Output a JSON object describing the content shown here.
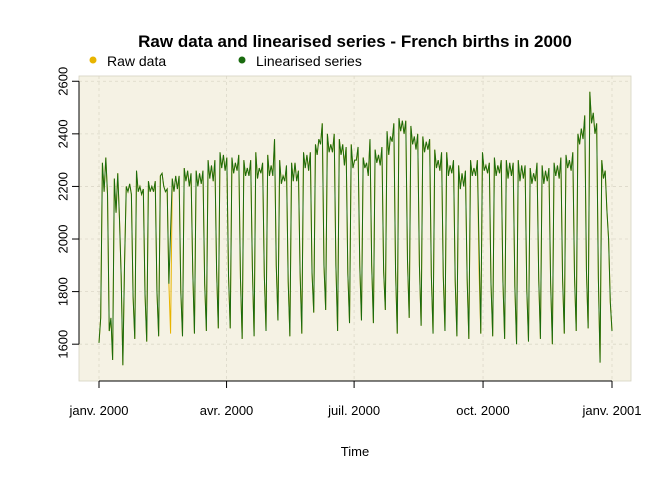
{
  "chart_data": {
    "type": "line",
    "title": "Raw data and linearised series - French births in 2000",
    "xlabel": "Time",
    "ylabel": "",
    "x_start": "2000-01-01",
    "x_end": "2001-01-01",
    "xlim": [
      "2000-01-01",
      "2001-01-01"
    ],
    "ylim": [
      1500,
      2600
    ],
    "x_ticks": [
      {
        "date": "2000-01-01",
        "label": "janv. 2000"
      },
      {
        "date": "2000-04-01",
        "label": "avr. 2000"
      },
      {
        "date": "2000-07-01",
        "label": "juil. 2000"
      },
      {
        "date": "2000-10-01",
        "label": "oct. 2000"
      },
      {
        "date": "2001-01-01",
        "label": "janv. 2001"
      }
    ],
    "y_ticks": [
      1600,
      1800,
      2000,
      2200,
      2400,
      2600
    ],
    "grid": true,
    "legend_position": "top-left",
    "background_color": "#f5f2e4",
    "series": [
      {
        "name": "Raw data",
        "color": "#e8b400",
        "values": [
          1605,
          1700,
          2290,
          2180,
          2310,
          2170,
          1650,
          1700,
          1540,
          2230,
          2100,
          2250,
          2080,
          1860,
          1520,
          1910,
          2200,
          2180,
          2210,
          2170,
          1780,
          1620,
          2260,
          2180,
          2200,
          2170,
          2190,
          1790,
          1610,
          2220,
          2180,
          2200,
          2180,
          2220,
          1800,
          1630,
          2240,
          2250,
          2200,
          2180,
          2190,
          1830,
          1640,
          2230,
          2180,
          2240,
          2190,
          2240,
          1800,
          1630,
          2270,
          2220,
          2260,
          2200,
          2250,
          1880,
          1640,
          2260,
          2200,
          2250,
          2210,
          2260,
          1830,
          1650,
          2300,
          2230,
          2280,
          2220,
          2300,
          1880,
          1660,
          2330,
          2270,
          2320,
          2260,
          2310,
          1860,
          1660,
          2310,
          2250,
          2290,
          2260,
          2320,
          1850,
          1620,
          2300,
          2240,
          2270,
          2240,
          2300,
          1890,
          1630,
          2330,
          2230,
          2270,
          2250,
          2290,
          1860,
          1650,
          2320,
          2240,
          2280,
          2240,
          2380,
          1900,
          1690,
          2300,
          2210,
          2240,
          2220,
          2280,
          1840,
          1630,
          2290,
          2220,
          2290,
          2220,
          2260,
          1870,
          1640,
          2330,
          2270,
          2320,
          2260,
          2330,
          1870,
          1720,
          2360,
          2320,
          2380,
          2360,
          2440,
          1900,
          1730,
          2400,
          2330,
          2360,
          2330,
          2400,
          1900,
          1650,
          2380,
          2320,
          2360,
          2280,
          2350,
          1870,
          1680,
          2360,
          2270,
          2300,
          2300,
          2350,
          1900,
          1690,
          2310,
          2270,
          2290,
          2240,
          2380,
          1900,
          1680,
          2340,
          2290,
          2320,
          2280,
          2350,
          1880,
          1730,
          2410,
          2320,
          2390,
          2370,
          2440,
          1880,
          1640,
          2460,
          2410,
          2450,
          2400,
          2450,
          1920,
          1700,
          2430,
          2360,
          2390,
          2340,
          2400,
          1900,
          1670,
          2390,
          2330,
          2370,
          2340,
          2380,
          1860,
          1640,
          2340,
          2270,
          2300,
          2260,
          2330,
          1860,
          1650,
          2330,
          2240,
          2280,
          2250,
          2300,
          1840,
          1630,
          2280,
          2190,
          2250,
          2200,
          2260,
          1850,
          1620,
          2300,
          2240,
          2270,
          2240,
          2300,
          1880,
          1640,
          2330,
          2260,
          2280,
          2250,
          2290,
          1830,
          1630,
          2310,
          2240,
          2280,
          2250,
          2300,
          1840,
          1620,
          2300,
          2230,
          2290,
          2240,
          2290,
          1820,
          1600,
          2300,
          2220,
          2280,
          2230,
          2280,
          1810,
          1610,
          2270,
          2210,
          2250,
          2220,
          2290,
          1850,
          1620,
          2280,
          2210,
          2260,
          2220,
          2270,
          1830,
          1600,
          2290,
          2240,
          2280,
          2230,
          2310,
          1850,
          1640,
          2320,
          2270,
          2300,
          2260,
          2330,
          1860,
          1650,
          2400,
          2360,
          2420,
          2380,
          2470,
          1880,
          1660,
          2560,
          2440,
          2480,
          2400,
          2440,
          1850,
          1530,
          2300,
          2230,
          2260,
          2110,
          2000,
          1760,
          1650
        ],
        "note_values_reconstructed": true
      },
      {
        "name": "Linearised series",
        "color": "#1a6b0f"
      }
    ]
  }
}
